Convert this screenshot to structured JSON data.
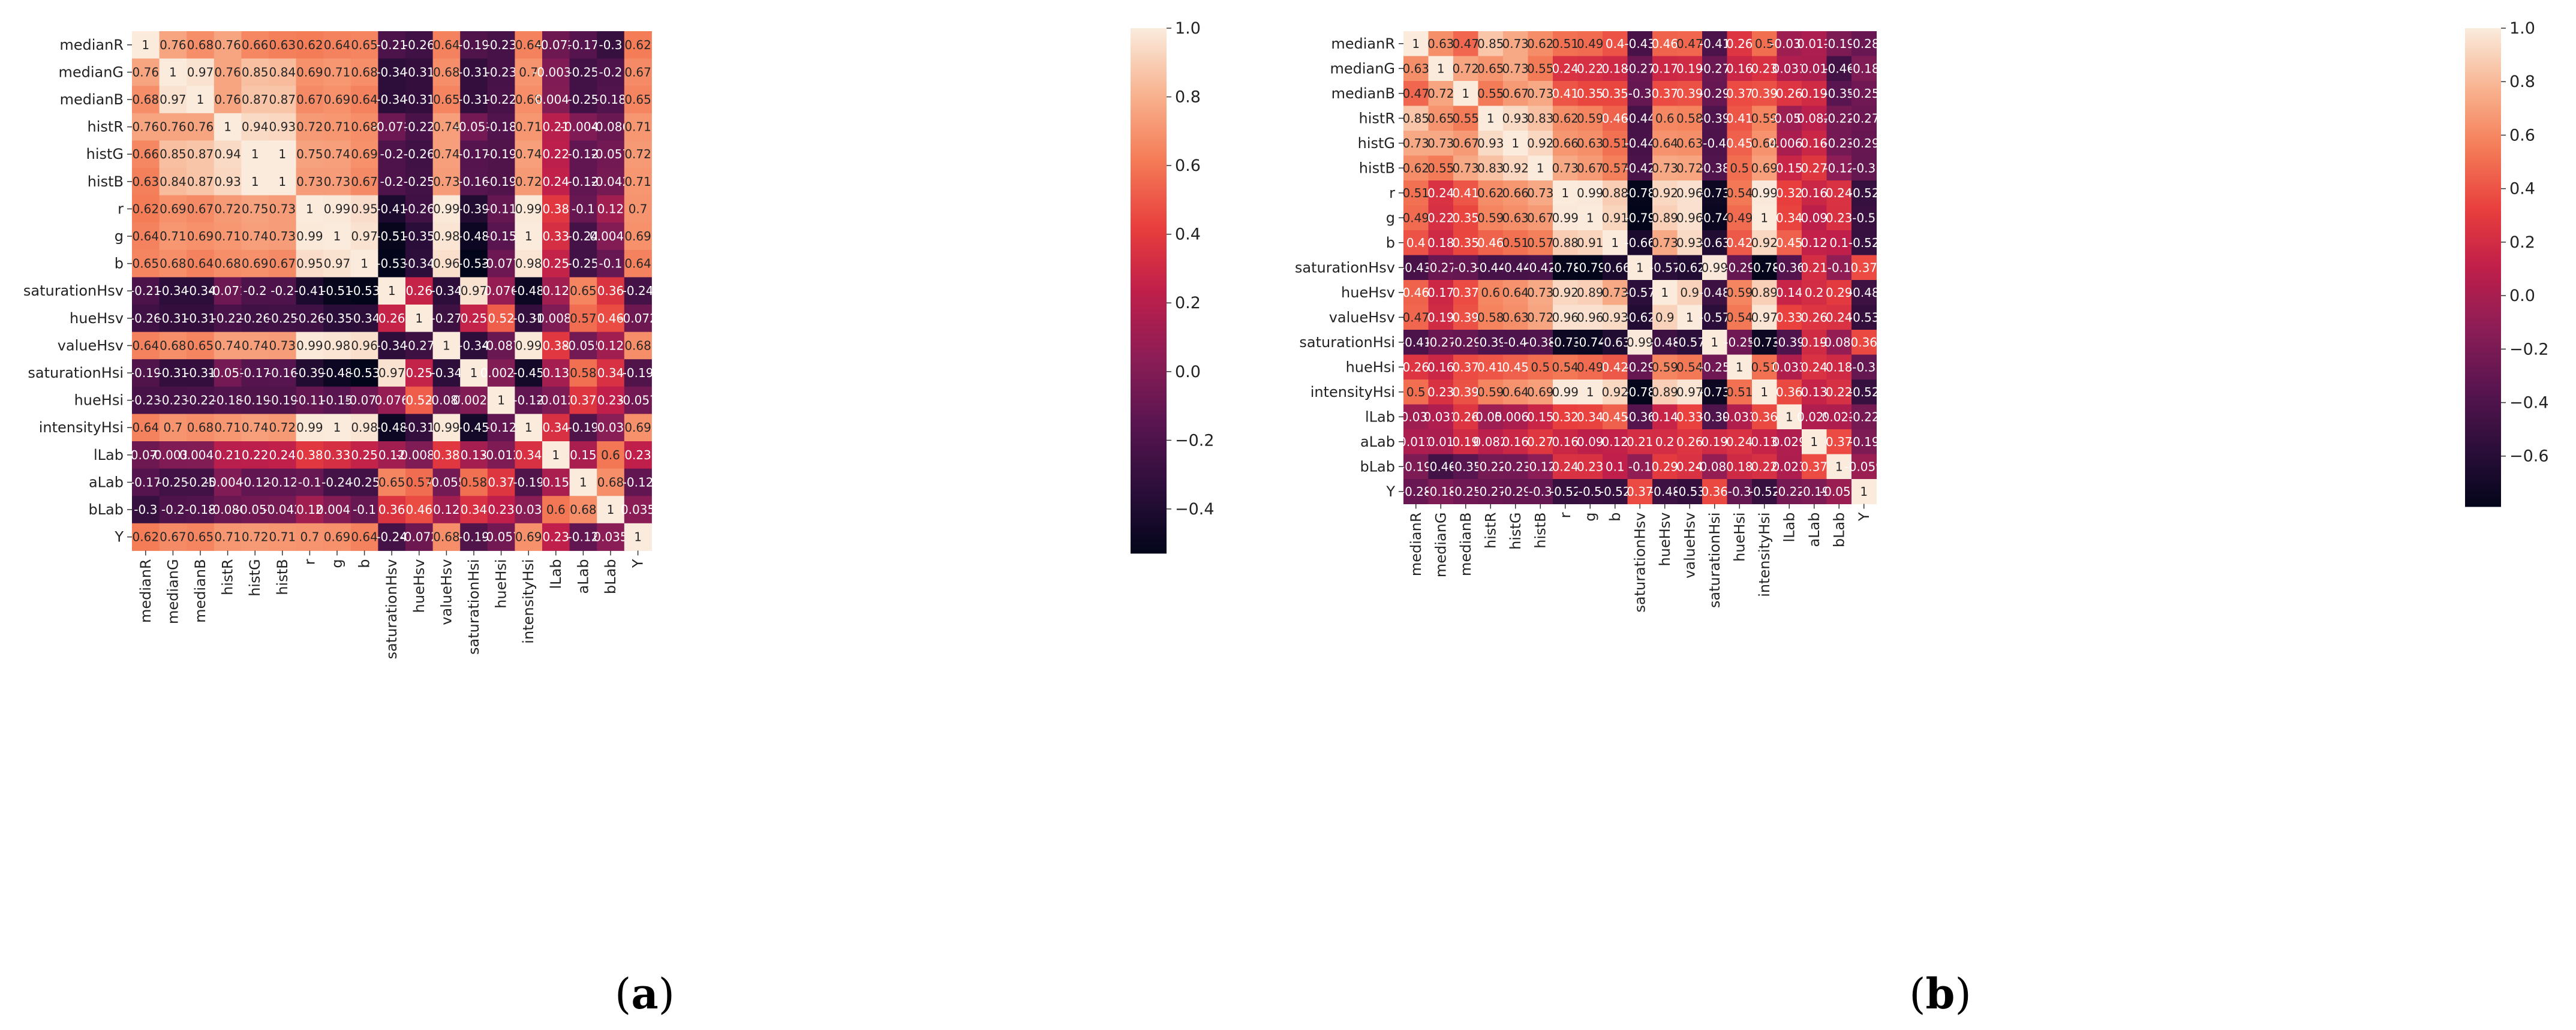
{
  "chart_data": [
    {
      "type": "heatmap",
      "panel_label_open": "(",
      "panel_letter": "a",
      "panel_label_close": ")",
      "labels": [
        "medianR",
        "medianG",
        "medianB",
        "histR",
        "histG",
        "histB",
        "r",
        "g",
        "b",
        "saturationHsv",
        "hueHsv",
        "valueHsv",
        "saturationHsi",
        "hueHsi",
        "intensityHsi",
        "lLab",
        "aLab",
        "bLab",
        "Y"
      ],
      "matrix": [
        [
          "1",
          "0.76",
          "0.68",
          "0.76",
          "0.66",
          "0.63",
          "0.62",
          "0.64",
          "0.65",
          "-0.21",
          "-0.26",
          "0.64",
          "-0.19",
          "-0.23",
          "0.64",
          "-0.072",
          "-0.17",
          "-0.3",
          "0.62"
        ],
        [
          "0.76",
          "1",
          "0.97",
          "0.76",
          "0.85",
          "0.84",
          "0.69",
          "0.71",
          "0.68",
          "-0.34",
          "-0.31",
          "0.68",
          "-0.31",
          "-0.23",
          "0.7",
          "-0.0038",
          "-0.25",
          "-0.2",
          "0.67"
        ],
        [
          "0.68",
          "0.97",
          "1",
          "0.76",
          "0.87",
          "0.87",
          "0.67",
          "0.69",
          "0.64",
          "-0.34",
          "-0.31",
          "0.65",
          "-0.31",
          "-0.22",
          "0.68",
          "0.0041",
          "-0.25",
          "-0.18",
          "0.65"
        ],
        [
          "0.76",
          "0.76",
          "0.76",
          "1",
          "0.94",
          "0.93",
          "0.72",
          "0.71",
          "0.68",
          "-0.071",
          "-0.22",
          "0.74",
          "-0.051",
          "-0.18",
          "0.71",
          "0.21",
          "-0.0043",
          "-0.086",
          "0.71"
        ],
        [
          "0.66",
          "0.85",
          "0.87",
          "0.94",
          "1",
          "1",
          "0.75",
          "0.74",
          "0.69",
          "-0.2",
          "-0.26",
          "0.74",
          "-0.17",
          "-0.19",
          "0.74",
          "0.22",
          "-0.12",
          "-0.057",
          "0.72"
        ],
        [
          "0.63",
          "0.84",
          "0.87",
          "0.93",
          "1",
          "1",
          "0.73",
          "0.73",
          "0.67",
          "-0.2",
          "-0.25",
          "0.73",
          "-0.16",
          "-0.19",
          "0.72",
          "0.24",
          "-0.12",
          "-0.042",
          "0.71"
        ],
        [
          "0.62",
          "0.69",
          "0.67",
          "0.72",
          "0.75",
          "0.73",
          "1",
          "0.99",
          "0.95",
          "-0.41",
          "-0.26",
          "0.99",
          "-0.39",
          "-0.11",
          "0.99",
          "0.38",
          "-0.1",
          "0.12",
          "0.7"
        ],
        [
          "0.64",
          "0.71",
          "0.69",
          "0.71",
          "0.74",
          "0.73",
          "0.99",
          "1",
          "0.97",
          "-0.51",
          "-0.35",
          "0.98",
          "-0.48",
          "-0.15",
          "1",
          "0.33",
          "-0.24",
          "0.0047",
          "0.69"
        ],
        [
          "0.65",
          "0.68",
          "0.64",
          "0.68",
          "0.69",
          "0.67",
          "0.95",
          "0.97",
          "1",
          "-0.53",
          "-0.34",
          "0.96",
          "-0.53",
          "-0.077",
          "0.98",
          "0.25",
          "-0.25",
          "-0.1",
          "0.64"
        ],
        [
          "-0.21",
          "-0.34",
          "-0.34",
          "-0.071",
          "-0.2",
          "-0.2",
          "-0.41",
          "-0.51",
          "-0.53",
          "1",
          "0.26",
          "-0.34",
          "0.97",
          "0.076",
          "-0.48",
          "0.12",
          "0.65",
          "0.36",
          "-0.24"
        ],
        [
          "-0.26",
          "-0.31",
          "-0.31",
          "-0.22",
          "-0.26",
          "-0.25",
          "-0.26",
          "-0.35",
          "-0.34",
          "0.26",
          "1",
          "-0.27",
          "0.25",
          "0.52",
          "-0.31",
          "-0.0082",
          "0.57",
          "0.46",
          "-0.072"
        ],
        [
          "0.64",
          "0.68",
          "0.65",
          "0.74",
          "0.74",
          "0.73",
          "0.99",
          "0.98",
          "0.96",
          "-0.34",
          "-0.27",
          "1",
          "-0.34",
          "-0.087",
          "0.99",
          "0.38",
          "-0.055",
          "0.12",
          "0.68"
        ],
        [
          "-0.19",
          "-0.31",
          "-0.31",
          "-0.051",
          "-0.17",
          "-0.16",
          "-0.39",
          "-0.48",
          "-0.53",
          "0.97",
          "0.25",
          "-0.34",
          "1",
          "0.0028",
          "-0.45",
          "0.13",
          "0.58",
          "0.34",
          "-0.19"
        ],
        [
          "-0.23",
          "-0.23",
          "-0.22",
          "-0.18",
          "-0.19",
          "-0.19",
          "-0.11",
          "-0.15",
          "-0.077",
          "0.076",
          "0.52",
          "-0.087",
          "0.0028",
          "1",
          "-0.12",
          "-0.012",
          "0.37",
          "0.23",
          "-0.057"
        ],
        [
          "0.64",
          "0.7",
          "0.68",
          "0.71",
          "0.74",
          "0.72",
          "0.99",
          "1",
          "0.98",
          "-0.48",
          "-0.31",
          "0.99",
          "-0.45",
          "-0.12",
          "1",
          "0.34",
          "-0.19",
          "0.03",
          "0.69"
        ],
        [
          "-0.072",
          "-0.0038",
          "0.0041",
          "0.21",
          "0.22",
          "0.24",
          "0.38",
          "0.33",
          "0.25",
          "0.12",
          "-0.0082",
          "0.38",
          "0.13",
          "-0.012",
          "0.34",
          "1",
          "0.15",
          "0.6",
          "0.23"
        ],
        [
          "-0.17",
          "-0.25",
          "-0.25",
          "-0.0043",
          "-0.12",
          "-0.12",
          "-0.1",
          "-0.24",
          "-0.25",
          "0.65",
          "0.57",
          "-0.055",
          "0.58",
          "0.37",
          "-0.19",
          "0.15",
          "1",
          "0.68",
          "-0.12"
        ],
        [
          "-0.3",
          "-0.2",
          "-0.18",
          "-0.086",
          "-0.057",
          "-0.042",
          "0.12",
          "0.0047",
          "-0.1",
          "0.36",
          "0.46",
          "0.12",
          "0.34",
          "0.23",
          "0.03",
          "0.6",
          "0.68",
          "1",
          "0.035"
        ],
        [
          "0.62",
          "0.67",
          "0.65",
          "0.71",
          "0.72",
          "0.71",
          "0.7",
          "0.69",
          "0.64",
          "-0.24",
          "-0.072",
          "0.68",
          "-0.19",
          "-0.057",
          "0.69",
          "0.23",
          "-0.12",
          "0.035",
          "1"
        ]
      ],
      "vmin": -0.53,
      "vmax": 1.0,
      "colorbar_ticks": [
        "1.0",
        "0.8",
        "0.6",
        "0.4",
        "0.2",
        "0.0",
        "−0.2",
        "−0.4"
      ],
      "colorbar_tick_values": [
        1.0,
        0.8,
        0.6,
        0.4,
        0.2,
        0.0,
        -0.2,
        -0.4
      ]
    },
    {
      "type": "heatmap",
      "panel_label_open": "(",
      "panel_letter": "b",
      "panel_label_close": ")",
      "labels": [
        "medianR",
        "medianG",
        "medianB",
        "histR",
        "histG",
        "histB",
        "r",
        "g",
        "b",
        "saturationHsv",
        "hueHsv",
        "valueHsv",
        "saturationHsi",
        "hueHsi",
        "intensityHsi",
        "lLab",
        "aLab",
        "bLab",
        "Y"
      ],
      "matrix": [
        [
          "1",
          "0.63",
          "0.47",
          "0.85",
          "0.73",
          "0.62",
          "0.51",
          "0.49",
          "0.4",
          "-0.43",
          "0.46",
          "0.47",
          "-0.41",
          "0.26",
          "0.5",
          "-0.039",
          "0.011",
          "-0.19",
          "-0.28"
        ],
        [
          "0.63",
          "1",
          "0.72",
          "0.65",
          "0.73",
          "0.55",
          "0.24",
          "0.22",
          "0.18",
          "-0.27",
          "0.17",
          "0.19",
          "-0.27",
          "0.16",
          "0.23",
          "0.031",
          "0.01",
          "-0.46",
          "-0.18"
        ],
        [
          "0.47",
          "0.72",
          "1",
          "0.55",
          "0.67",
          "0.73",
          "0.41",
          "0.35",
          "0.35",
          "-0.3",
          "0.37",
          "0.39",
          "-0.29",
          "0.37",
          "0.39",
          "0.26",
          "0.19",
          "-0.35",
          "-0.25"
        ],
        [
          "0.85",
          "0.65",
          "0.55",
          "1",
          "0.93",
          "0.83",
          "0.62",
          "0.59",
          "0.46",
          "-0.44",
          "0.6",
          "0.58",
          "-0.39",
          "0.41",
          "0.59",
          "-0.052",
          "0.082",
          "-0.22",
          "-0.27"
        ],
        [
          "0.73",
          "0.73",
          "0.67",
          "0.93",
          "1",
          "0.92",
          "0.66",
          "0.63",
          "0.51",
          "-0.44",
          "0.64",
          "0.63",
          "-0.4",
          "0.45",
          "0.64",
          "0.0069",
          "0.16",
          "-0.23",
          "-0.29"
        ],
        [
          "0.62",
          "0.55",
          "0.73",
          "0.83",
          "0.92",
          "1",
          "0.73",
          "0.67",
          "0.57",
          "-0.42",
          "0.73",
          "0.72",
          "-0.38",
          "0.5",
          "0.69",
          "0.15",
          "0.27",
          "-0.12",
          "-0.3"
        ],
        [
          "0.51",
          "0.24",
          "0.41",
          "0.62",
          "0.66",
          "0.73",
          "1",
          "0.99",
          "0.88",
          "-0.78",
          "0.92",
          "0.96",
          "-0.73",
          "0.54",
          "0.99",
          "0.32",
          "0.16",
          "0.24",
          "-0.52"
        ],
        [
          "0.49",
          "0.22",
          "0.35",
          "0.59",
          "0.63",
          "0.67",
          "0.99",
          "1",
          "0.91",
          "-0.79",
          "0.89",
          "0.96",
          "-0.74",
          "0.49",
          "1",
          "0.34",
          "0.09",
          "0.23",
          "-0.5"
        ],
        [
          "0.4",
          "0.18",
          "0.35",
          "0.46",
          "0.51",
          "0.57",
          "0.88",
          "0.91",
          "1",
          "-0.66",
          "0.73",
          "0.93",
          "-0.63",
          "0.42",
          "0.92",
          "0.45",
          "0.12",
          "0.1",
          "-0.52"
        ],
        [
          "-0.43",
          "-0.27",
          "-0.3",
          "-0.44",
          "-0.44",
          "-0.42",
          "-0.78",
          "-0.79",
          "-0.66",
          "1",
          "-0.57",
          "-0.62",
          "0.99",
          "-0.29",
          "-0.78",
          "-0.36",
          "0.21",
          "-0.1",
          "0.37"
        ],
        [
          "0.46",
          "0.17",
          "0.37",
          "0.6",
          "0.64",
          "0.73",
          "0.92",
          "0.89",
          "0.73",
          "-0.57",
          "1",
          "0.9",
          "-0.48",
          "0.59",
          "0.89",
          "0.14",
          "0.2",
          "0.29",
          "-0.48"
        ],
        [
          "0.47",
          "0.19",
          "0.39",
          "0.58",
          "0.63",
          "0.72",
          "0.96",
          "0.96",
          "0.93",
          "-0.62",
          "0.9",
          "1",
          "-0.57",
          "0.54",
          "0.97",
          "0.33",
          "0.26",
          "0.24",
          "-0.53"
        ],
        [
          "-0.41",
          "-0.27",
          "-0.29",
          "-0.39",
          "-0.4",
          "-0.38",
          "-0.73",
          "-0.74",
          "-0.63",
          "0.99",
          "-0.48",
          "-0.57",
          "1",
          "-0.25",
          "-0.73",
          "-0.39",
          "0.19",
          "-0.088",
          "0.36"
        ],
        [
          "0.26",
          "0.16",
          "0.37",
          "0.41",
          "0.45",
          "0.5",
          "0.54",
          "0.49",
          "0.42",
          "-0.29",
          "0.59",
          "0.54",
          "-0.25",
          "1",
          "0.51",
          "0.033",
          "0.24",
          "0.18",
          "-0.3"
        ],
        [
          "0.5",
          "0.23",
          "0.39",
          "0.59",
          "0.64",
          "0.69",
          "0.99",
          "1",
          "0.92",
          "-0.78",
          "0.89",
          "0.97",
          "-0.73",
          "0.51",
          "1",
          "0.36",
          "0.13",
          "0.22",
          "-0.52"
        ],
        [
          "-0.039",
          "0.031",
          "0.26",
          "-0.052",
          "0.0069",
          "0.15",
          "0.32",
          "0.34",
          "0.45",
          "-0.36",
          "0.14",
          "0.33",
          "-0.39",
          "0.033",
          "0.36",
          "1",
          "0.029",
          "0.023",
          "-0.22"
        ],
        [
          "0.011",
          "0.01",
          "0.19",
          "0.082",
          "0.16",
          "0.27",
          "0.16",
          "0.09",
          "0.12",
          "0.21",
          "0.2",
          "0.26",
          "0.19",
          "0.24",
          "0.13",
          "0.029",
          "1",
          "0.37",
          "-0.19"
        ],
        [
          "-0.19",
          "-0.46",
          "-0.35",
          "-0.22",
          "-0.23",
          "-0.12",
          "0.24",
          "0.23",
          "0.1",
          "-0.1",
          "0.29",
          "0.24",
          "-0.088",
          "0.18",
          "0.22",
          "0.023",
          "0.37",
          "1",
          "-0.059"
        ],
        [
          "-0.28",
          "-0.18",
          "-0.25",
          "-0.27",
          "-0.29",
          "-0.3",
          "-0.52",
          "-0.5",
          "-0.52",
          "0.37",
          "-0.48",
          "-0.53",
          "0.36",
          "-0.3",
          "-0.52",
          "-0.22",
          "-0.19",
          "-0.059",
          "1"
        ]
      ],
      "vmin": -0.79,
      "vmax": 1.0,
      "colorbar_ticks": [
        "1.0",
        "0.8",
        "0.6",
        "0.4",
        "0.2",
        "0.0",
        "−0.2",
        "−0.4",
        "−0.6"
      ],
      "colorbar_tick_values": [
        1.0,
        0.8,
        0.6,
        0.4,
        0.2,
        0.0,
        -0.2,
        -0.4,
        -0.6
      ]
    }
  ]
}
